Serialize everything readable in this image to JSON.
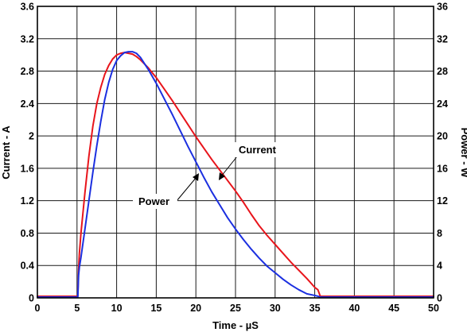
{
  "chart_data": {
    "type": "line",
    "xlabel": "Time - µS",
    "ylabel": "Current - A",
    "y2label": "Power - W",
    "xlim": [
      0,
      50
    ],
    "ylim": [
      0,
      3.6
    ],
    "y2lim": [
      0,
      36
    ],
    "xticks": [
      "0",
      "5",
      "10",
      "15",
      "20",
      "25",
      "30",
      "35",
      "40",
      "45",
      "50"
    ],
    "yticks": [
      "0",
      "0.4",
      "0.8",
      "1.2",
      "1.6",
      "2",
      "2.4",
      "2.8",
      "3.2",
      "3.6"
    ],
    "y2ticks": [
      "0",
      "4",
      "8",
      "12",
      "16",
      "20",
      "24",
      "28",
      "32",
      "36"
    ],
    "grid": true,
    "colors": {
      "current": "#e8141b",
      "power": "#1b2fe0"
    },
    "annotations": [
      {
        "text": "Current",
        "series": "Current"
      },
      {
        "text": "Power",
        "series": "Power"
      }
    ],
    "series": [
      {
        "name": "Current",
        "axis": "left",
        "x": [
          0,
          5.1,
          5.2,
          5.3,
          5.5,
          6,
          6.5,
          7,
          7.5,
          8,
          8.5,
          9,
          9.5,
          10,
          10.5,
          11,
          11.5,
          12,
          12.5,
          13,
          14,
          15,
          16,
          17,
          18,
          19,
          20,
          21,
          22,
          23,
          24,
          25,
          26,
          27,
          28,
          29,
          30,
          31,
          32,
          33,
          34,
          35,
          35.4,
          35.7,
          40,
          45,
          50
        ],
        "y": [
          0.02,
          0.02,
          0.35,
          0.55,
          0.8,
          1.3,
          1.75,
          2.12,
          2.4,
          2.6,
          2.76,
          2.87,
          2.95,
          3.0,
          3.02,
          3.03,
          3.02,
          3.01,
          2.98,
          2.94,
          2.84,
          2.72,
          2.58,
          2.44,
          2.29,
          2.14,
          1.99,
          1.85,
          1.71,
          1.58,
          1.45,
          1.32,
          1.18,
          1.03,
          0.89,
          0.77,
          0.66,
          0.55,
          0.44,
          0.34,
          0.24,
          0.13,
          0.1,
          0.02,
          0.02,
          0.02,
          0.02
        ]
      },
      {
        "name": "Power",
        "axis": "right",
        "x": [
          0,
          5.1,
          5.2,
          5.3,
          5.5,
          6,
          6.5,
          7,
          7.5,
          8,
          8.5,
          9,
          9.5,
          10,
          10.5,
          11,
          11.5,
          12,
          12.5,
          13,
          14,
          15,
          16,
          17,
          18,
          19,
          20,
          21,
          22,
          23,
          24,
          25,
          26,
          27,
          28,
          29,
          30,
          31,
          32,
          33,
          34,
          35,
          35.4,
          35.7,
          40,
          45,
          50
        ],
        "y": [
          0.1,
          0.1,
          2.8,
          3.8,
          5.0,
          8.5,
          12.0,
          15.5,
          18.8,
          21.8,
          24.5,
          26.6,
          28.2,
          29.3,
          29.9,
          30.3,
          30.4,
          30.4,
          30.2,
          29.7,
          28.2,
          26.5,
          24.6,
          22.7,
          20.7,
          18.7,
          16.8,
          14.9,
          13.1,
          11.5,
          9.9,
          8.5,
          7.2,
          6.0,
          4.9,
          3.9,
          3.1,
          2.3,
          1.6,
          1.0,
          0.5,
          0.3,
          0.2,
          0.1,
          0.1,
          0.1,
          0.1
        ]
      }
    ]
  }
}
